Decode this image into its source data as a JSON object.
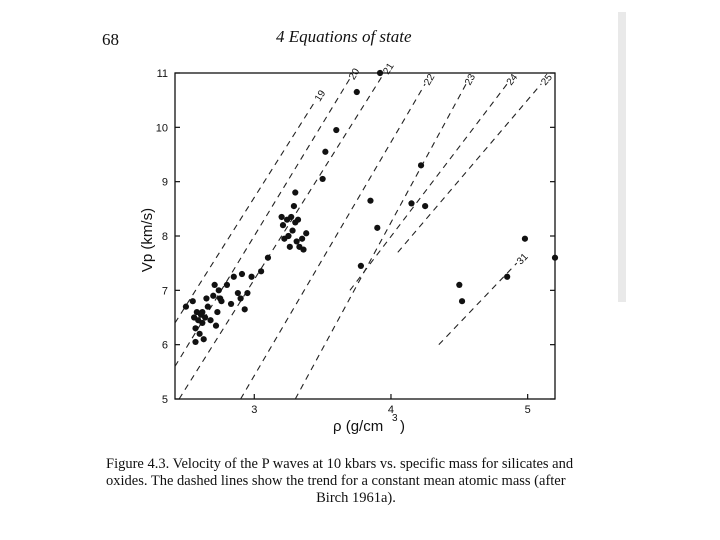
{
  "page": {
    "number": "68",
    "running_head": "4  Equations of state"
  },
  "caption": {
    "lead": "Figure 4.3.  Velocity of the P waves at 10 kbars vs. specific mass for silicates and oxides. The dashed lines show the trend for a constant mean atomic mass (after",
    "citation": "Birch 1961a)."
  },
  "chart_data": {
    "type": "scatter",
    "title": "",
    "xlabel": "ρ (g/cm³)",
    "ylabel": "Vp (km/s)",
    "xlim": [
      2.42,
      5.2
    ],
    "ylim": [
      5,
      11
    ],
    "x_ticks": [
      "3",
      "4",
      "5"
    ],
    "y_ticks": [
      "5",
      "6",
      "7",
      "8",
      "9",
      "10",
      "11"
    ],
    "grid": false,
    "trend_lines": [
      {
        "label": "19",
        "from": [
          2.42,
          6.4
        ],
        "to": [
          3.45,
          10.5
        ]
      },
      {
        "label": "20",
        "from": [
          2.42,
          5.6
        ],
        "to": [
          3.7,
          10.9
        ]
      },
      {
        "label": "21",
        "from": [
          2.45,
          5.0
        ],
        "to": [
          3.95,
          11.0
        ]
      },
      {
        "label": "22",
        "from": [
          2.9,
          5.0
        ],
        "to": [
          4.25,
          10.8
        ]
      },
      {
        "label": "23",
        "from": [
          3.3,
          5.0
        ],
        "to": [
          4.55,
          10.8
        ]
      },
      {
        "label": "24",
        "from": [
          3.7,
          7.0
        ],
        "to": [
          4.85,
          10.8
        ]
      },
      {
        "label": "25",
        "from": [
          4.05,
          7.7
        ],
        "to": [
          5.1,
          10.8
        ]
      },
      {
        "label": "31",
        "from": [
          4.35,
          6.0
        ],
        "to": [
          4.92,
          7.5
        ]
      }
    ],
    "points": [
      [
        2.5,
        6.7
      ],
      [
        2.55,
        6.8
      ],
      [
        2.56,
        6.5
      ],
      [
        2.57,
        6.3
      ],
      [
        2.57,
        6.05
      ],
      [
        2.58,
        6.6
      ],
      [
        2.59,
        6.45
      ],
      [
        2.6,
        6.2
      ],
      [
        2.61,
        6.55
      ],
      [
        2.62,
        6.4
      ],
      [
        2.62,
        6.6
      ],
      [
        2.63,
        6.1
      ],
      [
        2.64,
        6.5
      ],
      [
        2.65,
        6.85
      ],
      [
        2.66,
        6.7
      ],
      [
        2.68,
        6.45
      ],
      [
        2.7,
        6.9
      ],
      [
        2.71,
        7.1
      ],
      [
        2.72,
        6.35
      ],
      [
        2.73,
        6.6
      ],
      [
        2.74,
        7.0
      ],
      [
        2.75,
        6.85
      ],
      [
        2.76,
        6.8
      ],
      [
        2.8,
        7.1
      ],
      [
        2.83,
        6.75
      ],
      [
        2.85,
        7.25
      ],
      [
        2.88,
        6.95
      ],
      [
        2.9,
        6.85
      ],
      [
        2.91,
        7.3
      ],
      [
        2.93,
        6.65
      ],
      [
        2.95,
        6.95
      ],
      [
        2.98,
        7.25
      ],
      [
        3.05,
        7.35
      ],
      [
        3.1,
        7.6
      ],
      [
        3.2,
        8.35
      ],
      [
        3.21,
        8.2
      ],
      [
        3.22,
        7.95
      ],
      [
        3.24,
        8.3
      ],
      [
        3.25,
        8.0
      ],
      [
        3.26,
        7.8
      ],
      [
        3.27,
        8.35
      ],
      [
        3.28,
        8.1
      ],
      [
        3.29,
        8.55
      ],
      [
        3.3,
        8.8
      ],
      [
        3.3,
        8.25
      ],
      [
        3.31,
        7.9
      ],
      [
        3.32,
        8.3
      ],
      [
        3.33,
        7.8
      ],
      [
        3.35,
        7.95
      ],
      [
        3.36,
        7.75
      ],
      [
        3.38,
        8.05
      ],
      [
        3.5,
        9.05
      ],
      [
        3.52,
        9.55
      ],
      [
        3.6,
        9.95
      ],
      [
        3.75,
        10.65
      ],
      [
        3.78,
        7.45
      ],
      [
        3.85,
        8.65
      ],
      [
        3.9,
        8.15
      ],
      [
        3.92,
        11.0
      ],
      [
        4.15,
        8.6
      ],
      [
        4.22,
        9.3
      ],
      [
        4.25,
        8.55
      ],
      [
        4.5,
        7.1
      ],
      [
        4.52,
        6.8
      ],
      [
        4.85,
        7.25
      ],
      [
        4.98,
        7.95
      ],
      [
        5.2,
        7.6
      ]
    ]
  }
}
